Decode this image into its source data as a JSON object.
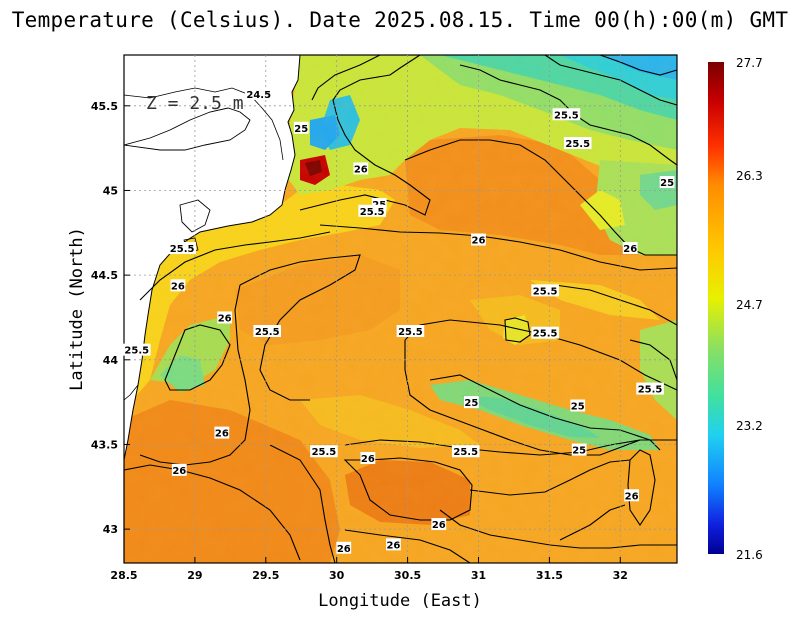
{
  "title": "Temperature (Celsius). Date 2025.08.15. Time 00(h):00(m) GMT",
  "depth_label": "Z = 2.5 m",
  "x_axis": {
    "label": "Longitude (East)",
    "min": 28.5,
    "max": 32.4,
    "ticks": [
      "28.5",
      "29",
      "29.5",
      "30",
      "30.5",
      "31",
      "31.5",
      "32"
    ]
  },
  "y_axis": {
    "label": "Latitude (North)",
    "min": 42.8,
    "max": 45.8,
    "ticks": [
      "43",
      "43.5",
      "44",
      "44.5",
      "45",
      "45.5"
    ]
  },
  "colorbar": {
    "min": 21.6,
    "max": 27.7,
    "labels": [
      "27.7",
      "26.3",
      "24.7",
      "23.2",
      "21.6"
    ]
  },
  "contour_labels": [
    {
      "text": "24.5",
      "lon": 29.45,
      "lat": 45.57
    },
    {
      "text": "25",
      "lon": 29.75,
      "lat": 45.37
    },
    {
      "text": "25.5",
      "lon": 31.62,
      "lat": 45.45
    },
    {
      "text": "25.5",
      "lon": 31.7,
      "lat": 45.28
    },
    {
      "text": "26",
      "lon": 30.17,
      "lat": 45.13
    },
    {
      "text": "25",
      "lon": 30.3,
      "lat": 44.92
    },
    {
      "text": "25.5",
      "lon": 30.25,
      "lat": 44.88
    },
    {
      "text": "25",
      "lon": 32.33,
      "lat": 45.05
    },
    {
      "text": "26",
      "lon": 31.0,
      "lat": 44.71
    },
    {
      "text": "25.5",
      "lon": 28.91,
      "lat": 44.66
    },
    {
      "text": "26",
      "lon": 32.07,
      "lat": 44.66
    },
    {
      "text": "26",
      "lon": 28.88,
      "lat": 44.44
    },
    {
      "text": "25.5",
      "lon": 31.47,
      "lat": 44.41
    },
    {
      "text": "26",
      "lon": 29.21,
      "lat": 44.25
    },
    {
      "text": "25.5",
      "lon": 29.51,
      "lat": 44.17
    },
    {
      "text": "25.5",
      "lon": 30.52,
      "lat": 44.17
    },
    {
      "text": "25.5",
      "lon": 31.47,
      "lat": 44.16
    },
    {
      "text": "25.5",
      "lon": 28.59,
      "lat": 44.06
    },
    {
      "text": "25.5",
      "lon": 32.21,
      "lat": 43.83
    },
    {
      "text": "25",
      "lon": 30.95,
      "lat": 43.75
    },
    {
      "text": "25",
      "lon": 31.7,
      "lat": 43.73
    },
    {
      "text": "26",
      "lon": 29.19,
      "lat": 43.57
    },
    {
      "text": "25.5",
      "lon": 29.91,
      "lat": 43.46
    },
    {
      "text": "26",
      "lon": 30.22,
      "lat": 43.42
    },
    {
      "text": "25.5",
      "lon": 30.91,
      "lat": 43.46
    },
    {
      "text": "25",
      "lon": 31.71,
      "lat": 43.47
    },
    {
      "text": "26",
      "lon": 28.89,
      "lat": 43.35
    },
    {
      "text": "26",
      "lon": 32.08,
      "lat": 43.2
    },
    {
      "text": "26",
      "lon": 30.72,
      "lat": 43.03
    },
    {
      "text": "26",
      "lon": 30.05,
      "lat": 42.89
    },
    {
      "text": "26",
      "lon": 30.4,
      "lat": 42.91
    }
  ]
}
